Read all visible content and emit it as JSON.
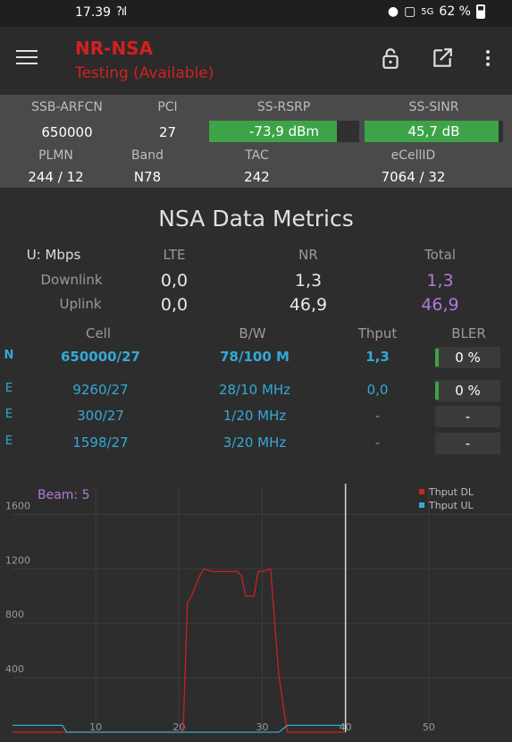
{
  "status_bar": {
    "time": "17.39",
    "signal": "?ıl",
    "network": "5G",
    "battery": "62 %"
  },
  "app_bar": {
    "title": "NR-NSA",
    "subtitle": "Testing (Available)"
  },
  "info": {
    "headers": [
      "SSB-ARFCN",
      "PCI",
      "SS-RSRP",
      "SS-SINR"
    ],
    "ssb_arfcn": "650000",
    "pci": "27",
    "rsrp": {
      "text": "-73,9 dBm",
      "level": 0.85
    },
    "sinr": {
      "text": "45,7 dB",
      "level": 0.97
    },
    "headers2": [
      "PLMN",
      "Band",
      "TAC",
      "eCellID"
    ],
    "plmn": "244 / 12",
    "band": "N78",
    "tac": "242",
    "ecellid": "7064 / 32"
  },
  "metrics": {
    "title": "NSA Data Metrics",
    "unit": "U: Mbps",
    "cols": [
      "LTE",
      "NR",
      "Total"
    ],
    "rows": [
      {
        "label": "Downlink",
        "lte": "0,0",
        "nr": "1,3",
        "total": "1,3"
      },
      {
        "label": "Uplink",
        "lte": "0,0",
        "nr": "46,9",
        "total": "46,9"
      }
    ]
  },
  "cells": {
    "headers": [
      "Cell",
      "B/W",
      "Thput",
      "BLER"
    ],
    "rows": [
      {
        "type": "N",
        "cell": "650000/27",
        "bw": "78/100 M",
        "thput": "1,3",
        "bler": "0 %",
        "bler_bar": true
      },
      {
        "type": "E",
        "cell": "9260/27",
        "bw": "28/10 MHz",
        "thput": "0,0",
        "bler": "0 %",
        "bler_bar": true
      },
      {
        "type": "E",
        "cell": "300/27",
        "bw": "1/20 MHz",
        "thput": "-",
        "bler": "-",
        "bler_bar": false
      },
      {
        "type": "E",
        "cell": "1598/27",
        "bw": "3/20 MHz",
        "thput": "-",
        "bler": "-",
        "bler_bar": false
      }
    ]
  },
  "chart_data": {
    "type": "line",
    "annotation": "Beam: 5",
    "xticks": [
      "10",
      "20",
      "30",
      "40",
      "50"
    ],
    "yticks": [
      "400",
      "800",
      "1200",
      "1600"
    ],
    "xlim": [
      0,
      60
    ],
    "ylim": [
      0,
      1800
    ],
    "cursor_x": 40,
    "series": [
      {
        "name": "Thput DL",
        "color": "#d42020",
        "x": [
          0,
          20.5,
          21,
          21.5,
          22.5,
          23,
          23.5,
          24,
          27,
          27.5,
          28,
          29,
          29.5,
          30,
          31,
          32,
          33,
          34,
          40
        ],
        "y": [
          0,
          0,
          950,
          1000,
          1150,
          1200,
          1190,
          1180,
          1180,
          1150,
          1000,
          1000,
          1180,
          1180,
          1200,
          410,
          0,
          0,
          0
        ]
      },
      {
        "name": "Thput UL",
        "color": "#34a9d6",
        "x": [
          0,
          6,
          6.5,
          32,
          33,
          40
        ],
        "y": [
          50,
          50,
          0,
          0,
          50,
          50
        ]
      }
    ],
    "colors": {
      "dl": "#d42020",
      "ul": "#34a9d6",
      "beam": "#b07ad6"
    }
  }
}
